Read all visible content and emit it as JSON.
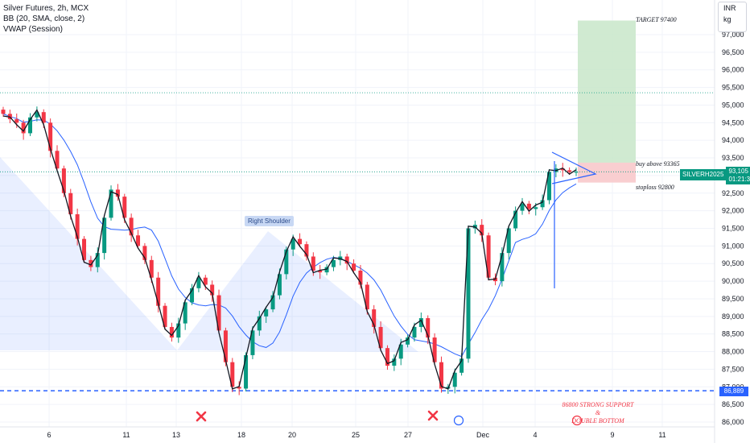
{
  "legend": {
    "title": "Silver Futures, 2h, MCX",
    "bb": "BB (20, SMA, close, 2)",
    "vwap": "VWAP (Session)"
  },
  "units": {
    "currency": "INR",
    "unit": "kg"
  },
  "price_tag": {
    "symbol": "SILVERH2025",
    "price": "93,105",
    "countdown": "01:21:37"
  },
  "support_tag": "86,889",
  "annotations": {
    "target": "TARGET 97400",
    "buy": "buy above 93365",
    "stoploss": "stoploss 92800",
    "right_shoulder": "Right Shoulder",
    "support_note_line1": "86800 STRONG SUPPORT",
    "support_note_line2": "&",
    "support_note_line3": "DOUBLE BOTTOM"
  },
  "colors": {
    "up": "#089981",
    "down": "#f23645",
    "bb": "#2962ff",
    "vwap": "#131722",
    "target_zone": "#c8e6c9",
    "stop_zone": "#f8c5c8",
    "support_line": "#2962ff"
  },
  "chart_data": {
    "type": "candlestick",
    "title": "Silver Futures, 2h, MCX",
    "y_ticks": [
      86000,
      86500,
      87000,
      87500,
      88000,
      88500,
      89000,
      89500,
      90000,
      90500,
      91000,
      91500,
      92000,
      92500,
      93000,
      93500,
      94000,
      94500,
      95000,
      95500,
      96000,
      96500,
      97000
    ],
    "y_tick_labels": [
      "86,000",
      "86,500",
      "87,000",
      "87,500",
      "88,000",
      "88,500",
      "89,000",
      "89,500",
      "90,000",
      "90,500",
      "91,000",
      "91,500",
      "92,000",
      "92,500",
      "93,000",
      "93,500",
      "94,000",
      "94,500",
      "95,000",
      "95,500",
      "96,000",
      "96,500",
      "97,000"
    ],
    "ylim": [
      85900,
      97600
    ],
    "x_ticks": [
      "6",
      "11",
      "13",
      "18",
      "20",
      "25",
      "27",
      "Dec",
      "4",
      "9",
      "11"
    ],
    "levels": {
      "target": 97400,
      "entry": 93365,
      "stoploss": 92800,
      "support": 86889,
      "dotted_upper": 95350,
      "last": 93105
    },
    "close_path": [
      94750,
      94600,
      94500,
      94200,
      94650,
      94800,
      94500,
      93700,
      93200,
      92500,
      91900,
      91200,
      90600,
      90400,
      90800,
      91800,
      92600,
      92400,
      91800,
      91300,
      91000,
      90600,
      90100,
      89300,
      88700,
      88400,
      88800,
      89400,
      89800,
      90100,
      89900,
      89600,
      88600,
      87700,
      87000,
      86950,
      87900,
      88600,
      89000,
      89200,
      89600,
      90200,
      90900,
      91200,
      91050,
      90700,
      90300,
      90250,
      90400,
      90600,
      90700,
      90500,
      90300,
      89900,
      89200,
      88700,
      88100,
      87600,
      87800,
      88200,
      88400,
      88700,
      88950,
      88400,
      87700,
      86950,
      87000,
      87400,
      87800,
      91500,
      91600,
      91300,
      90100,
      90000,
      90800,
      91500,
      92000,
      92200,
      92050,
      92100,
      92300,
      93100,
      93200,
      93150,
      93100,
      93105
    ]
  }
}
